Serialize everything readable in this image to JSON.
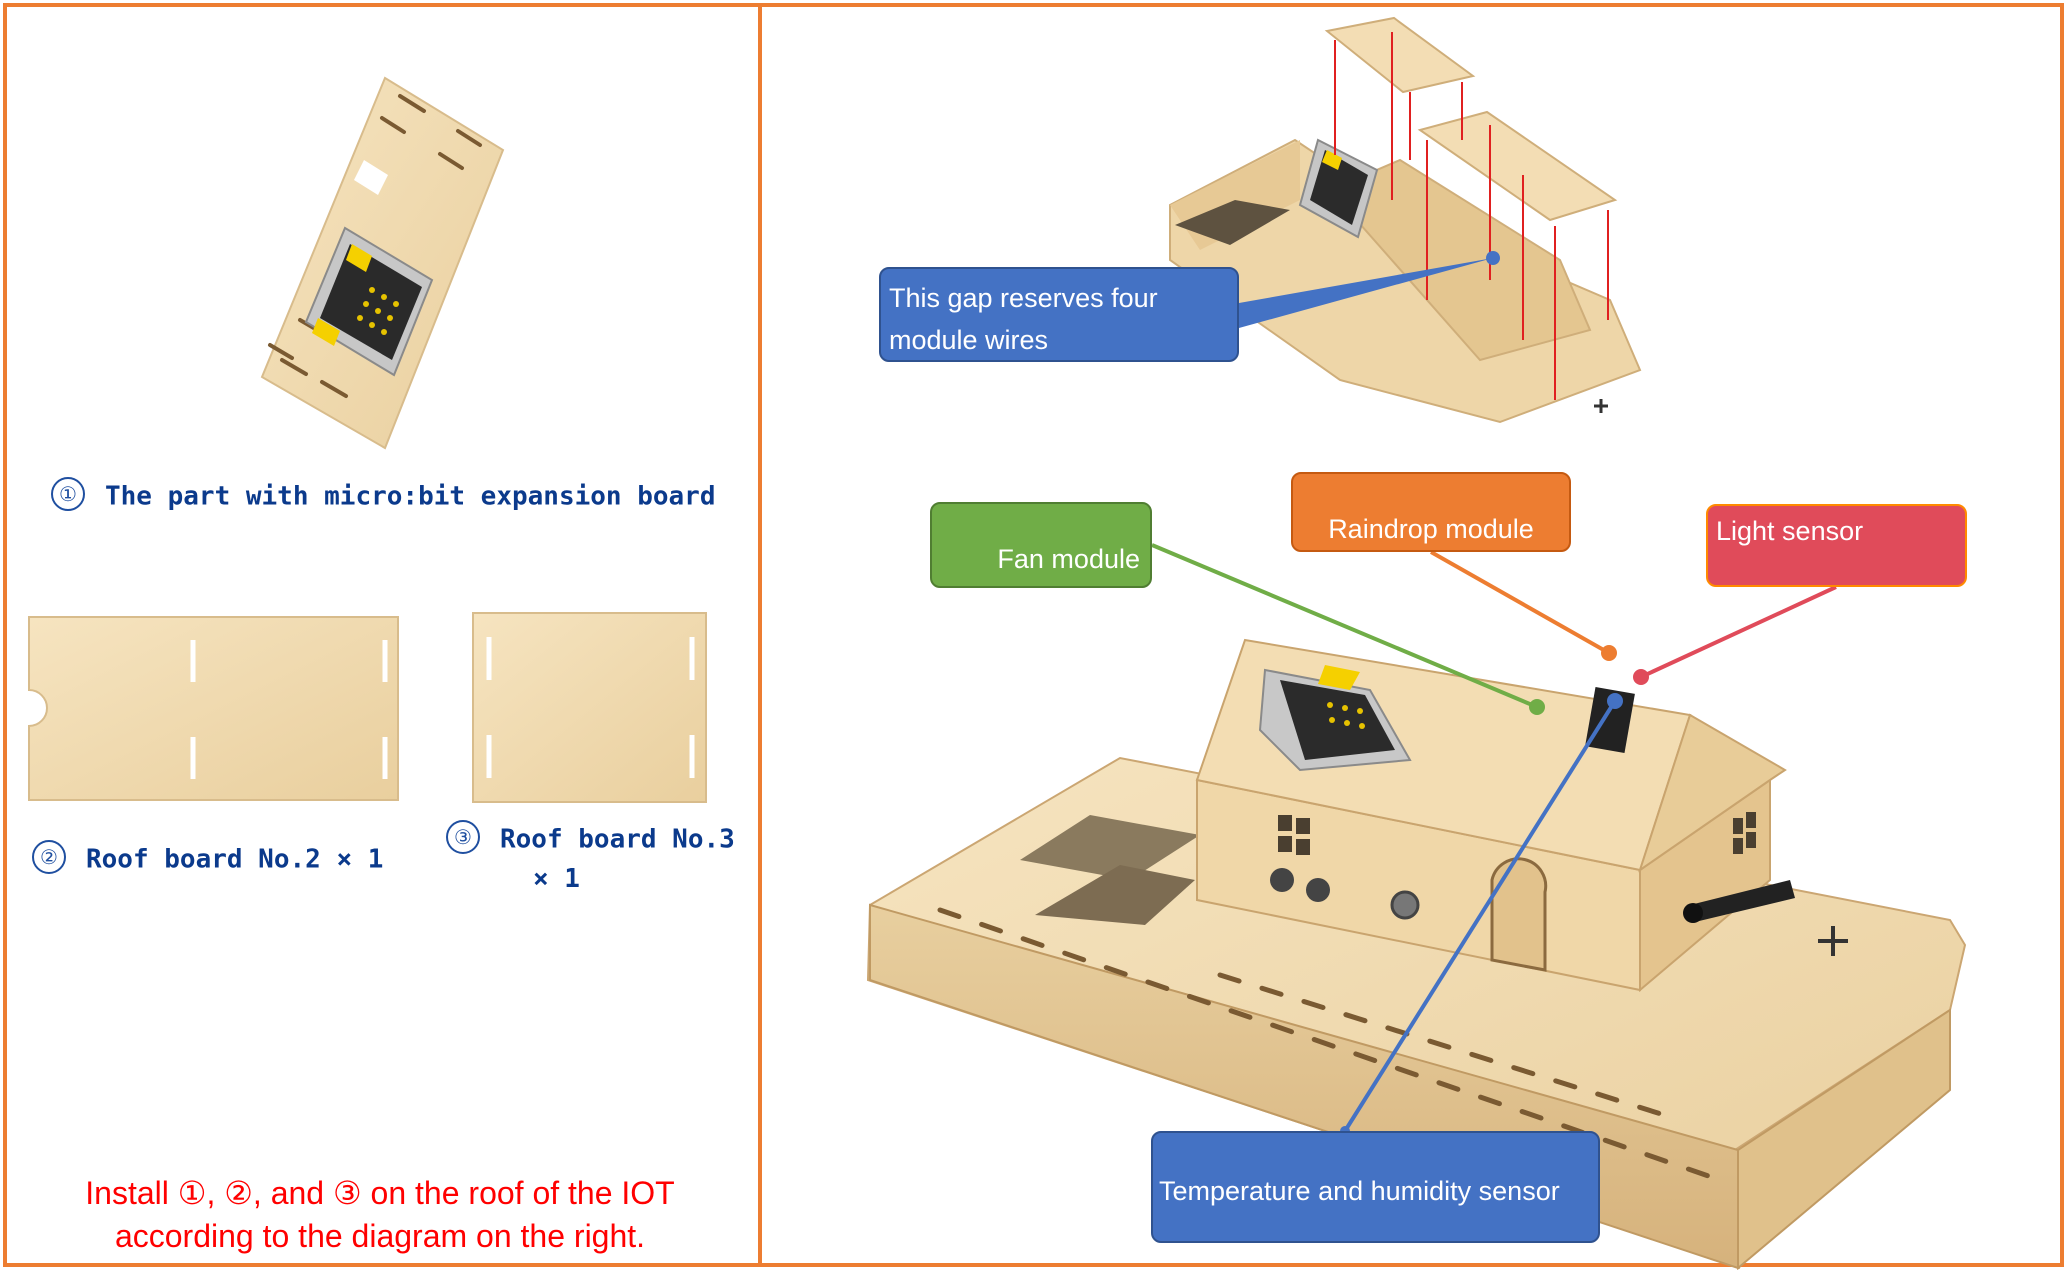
{
  "parts": [
    {
      "number": "①",
      "label": "The part with micro:bit expansion board"
    },
    {
      "number": "②",
      "label": "Roof board No.2 × 1"
    },
    {
      "number": "③",
      "label": "Roof board No.3",
      "label_line2": "× 1"
    }
  ],
  "instruction": {
    "line1": "Install ①, ②, and ③ on the roof of the IOT",
    "line2": "according to the diagram on the right."
  },
  "callouts": {
    "gap": {
      "line1": "This gap reserves four",
      "line2": "module wires"
    },
    "fan": "Fan module",
    "raindrop": "Raindrop module",
    "light": "Light sensor",
    "temperature": "Temperature and humidity sensor"
  },
  "colors": {
    "frame": "#ed7d31",
    "wood": "#f2dcb2",
    "caption": "#0b3a8c",
    "instruction": "#ff0000",
    "callout_blue": "#4472c4",
    "callout_green": "#70ad47",
    "callout_orange": "#ed7d31",
    "callout_red": "#e04b5a"
  }
}
